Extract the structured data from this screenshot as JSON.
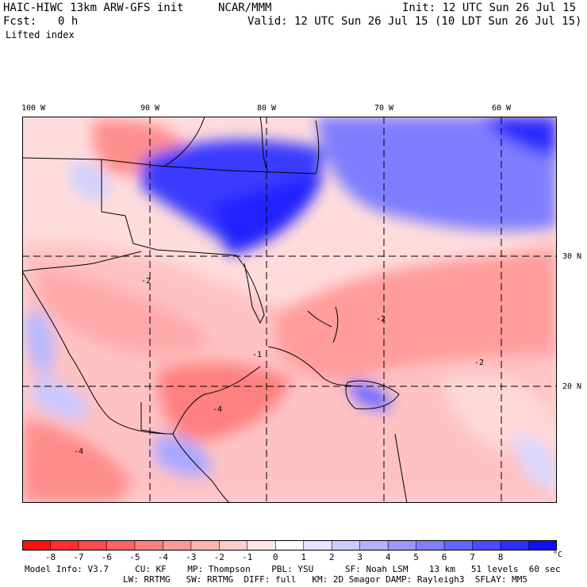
{
  "header": {
    "model": "HAIC-HIWC 13km ARW-GFS init",
    "org": "NCAR/MMM",
    "init": "Init: 12 UTC Sun 26 Jul 15",
    "fcst_label": "Fcst:",
    "fcst_value": "0 h",
    "valid": "Valid: 12 UTC Sun 26 Jul 15 (10 LDT Sun 26 Jul 15)",
    "field": "Lifted index"
  },
  "map": {
    "lon_labels": [
      "100 W",
      "90 W",
      "80 W",
      "70 W",
      "60 W"
    ],
    "lat_labels": [
      "30 N",
      "20 N"
    ],
    "contour_labels": [
      "-2",
      "-4",
      "-1",
      "-2",
      "-4",
      "-2"
    ]
  },
  "colorbar": {
    "labels": [
      "-8",
      "-7",
      "-6",
      "-5",
      "-4",
      "-3",
      "-2",
      "-1",
      "0",
      "1",
      "2",
      "3",
      "4",
      "5",
      "6",
      "7",
      "8"
    ],
    "unit": "°C",
    "colors": [
      "#ff1010",
      "#ff2e2e",
      "#ff4b4b",
      "#ff6464",
      "#ff7e7e",
      "#ff9898",
      "#ffb2b2",
      "#ffcccc",
      "#ffe6e6",
      "#ffffff",
      "#e6e6ff",
      "#ccccff",
      "#b2b2ff",
      "#9898ff",
      "#7e7eff",
      "#6464ff",
      "#4b4bff",
      "#2e2eff",
      "#1010f0"
    ]
  },
  "footer": {
    "line1": "Model Info: V3.7     CU: KF    MP: Thompson    PBL: YSU      SF: Noah LSM    13 km   51 levels  60 sec",
    "line2": "LW: RRTMG   SW: RRTMG  DIFF: full   KM: 2D Smagor DAMP: Rayleigh3  SFLAY: MM5"
  }
}
